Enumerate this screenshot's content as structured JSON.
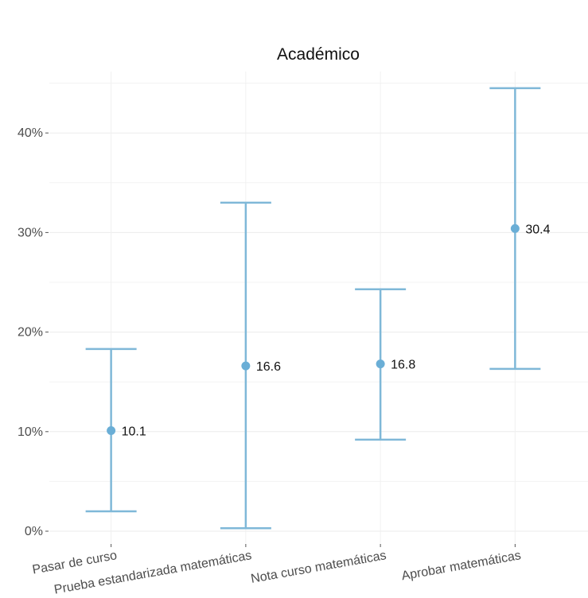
{
  "chart_data": {
    "type": "errorbar",
    "title": "Académico",
    "xlabel": "",
    "ylabel": "",
    "ylim": [
      -1,
      47
    ],
    "yticks": [
      0,
      10,
      20,
      30,
      40
    ],
    "ytick_labels": [
      "0%",
      "10%",
      "20%",
      "30%",
      "40%"
    ],
    "categories": [
      "Pasar de curso",
      "Prueba estandarizada matemáticas",
      "Nota curso matemáticas",
      "Aprobar matemáticas"
    ],
    "series": [
      {
        "estimates": [
          10.1,
          16.6,
          16.8,
          30.4
        ],
        "estimate_labels": [
          "10.1",
          "16.6",
          "16.8",
          "30.4"
        ],
        "lower": [
          2.0,
          0.3,
          9.2,
          16.3
        ],
        "upper": [
          18.3,
          33.0,
          24.3,
          44.5
        ]
      }
    ],
    "color": "#7fb8d8",
    "point_color": "#6aaed6",
    "grid": true,
    "legend": "none"
  }
}
